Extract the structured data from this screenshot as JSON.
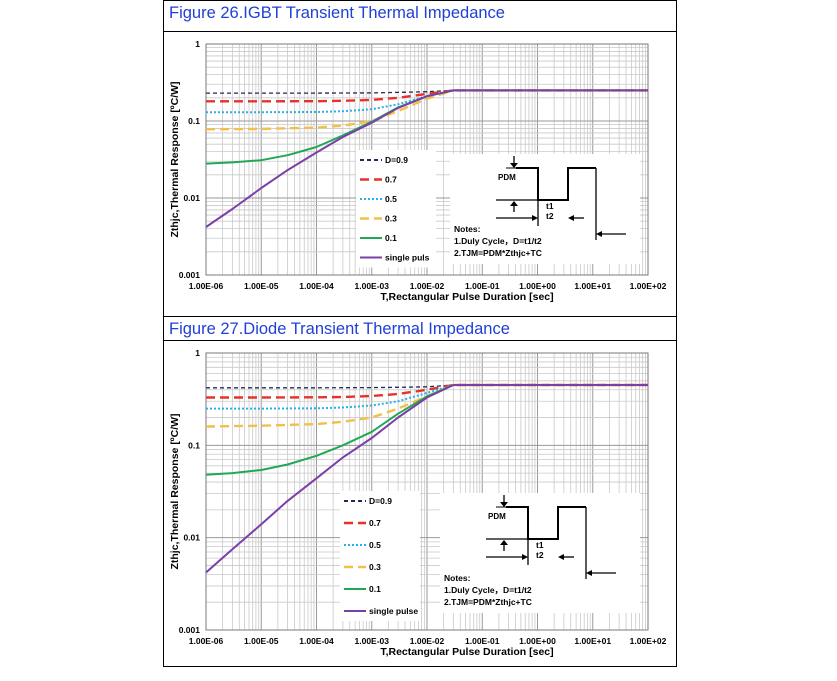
{
  "chart_data": [
    {
      "type": "line",
      "title": "Figure 26.IGBT Transient Thermal Impedance",
      "xlabel": "T,Rectangular Pulse Duration [sec]",
      "ylabel": "Zthjc,Thermal Response [ºC/W]",
      "x_scale": "log",
      "y_scale": "log",
      "xlim": [
        1e-06,
        100
      ],
      "ylim": [
        0.001,
        1
      ],
      "grid": true,
      "x_ticks": [
        "1.00E-06",
        "1.00E-05",
        "1.00E-04",
        "1.00E-03",
        "1.00E-02",
        "1.00E-01",
        "1.00E+00",
        "1.00E+01",
        "1.00E+02"
      ],
      "y_ticks": [
        "0.001",
        "0.01",
        "0.1",
        "1"
      ],
      "legend_position": "bottom-center",
      "series": [
        {
          "name": "D=0.9",
          "color": "#1f2a5a",
          "dash": "dashed-short",
          "x": [
            1e-06,
            1e-05,
            0.0001,
            0.001,
            0.003,
            0.01,
            0.03,
            0.1,
            1,
            10,
            100
          ],
          "y": [
            0.23,
            0.23,
            0.23,
            0.232,
            0.235,
            0.24,
            0.25,
            0.25,
            0.25,
            0.25,
            0.25
          ]
        },
        {
          "name": "0.7",
          "color": "#e8312a",
          "dash": "dashed-long",
          "x": [
            1e-06,
            1e-05,
            0.0001,
            0.0003,
            0.001,
            0.003,
            0.01,
            0.03,
            0.1,
            1,
            10,
            100
          ],
          "y": [
            0.18,
            0.18,
            0.181,
            0.183,
            0.188,
            0.2,
            0.225,
            0.25,
            0.25,
            0.25,
            0.25,
            0.25
          ]
        },
        {
          "name": "0.5",
          "color": "#2ab0e8",
          "dash": "dotted",
          "x": [
            1e-06,
            1e-05,
            0.0001,
            0.0003,
            0.001,
            0.003,
            0.01,
            0.03,
            0.1,
            1,
            10,
            100
          ],
          "y": [
            0.13,
            0.13,
            0.131,
            0.134,
            0.142,
            0.165,
            0.21,
            0.25,
            0.25,
            0.25,
            0.25,
            0.25
          ]
        },
        {
          "name": "0.3",
          "color": "#f2c04a",
          "dash": "dashed-long",
          "x": [
            1e-06,
            1e-05,
            0.0001,
            0.0003,
            0.001,
            0.003,
            0.01,
            0.03,
            0.1,
            1,
            10,
            100
          ],
          "y": [
            0.078,
            0.079,
            0.082,
            0.087,
            0.1,
            0.135,
            0.195,
            0.25,
            0.25,
            0.25,
            0.25,
            0.25
          ]
        },
        {
          "name": "0.1",
          "color": "#22a855",
          "dash": "solid",
          "x": [
            1e-06,
            3e-06,
            1e-05,
            3e-05,
            0.0001,
            0.0003,
            0.001,
            0.003,
            0.01,
            0.03,
            0.1,
            1,
            10,
            100
          ],
          "y": [
            0.028,
            0.029,
            0.031,
            0.036,
            0.046,
            0.065,
            0.098,
            0.15,
            0.21,
            0.25,
            0.25,
            0.25,
            0.25,
            0.25
          ]
        },
        {
          "name": "single puls",
          "color": "#7b3fa8",
          "dash": "solid",
          "x": [
            1e-06,
            3e-06,
            1e-05,
            3e-05,
            0.0001,
            0.0003,
            0.001,
            0.003,
            0.01,
            0.03,
            0.1,
            1,
            10,
            100
          ],
          "y": [
            0.0042,
            0.0072,
            0.0135,
            0.023,
            0.039,
            0.062,
            0.095,
            0.148,
            0.21,
            0.25,
            0.25,
            0.25,
            0.25,
            0.25
          ]
        }
      ],
      "notes": {
        "pdm": "PDM",
        "t1": "t1",
        "t2": "t2",
        "heading": "Notes:",
        "line1": "1.Duly Cycle，D=t1/t2",
        "line2": "2.TJM=PDM*Zthjc+TC"
      }
    },
    {
      "type": "line",
      "title": "Figure 27.Diode Transient Thermal Impedance",
      "xlabel": "T,Rectangular Pulse Duration [sec]",
      "ylabel": "Zthjc,Thermal Response [ºC/W]",
      "x_scale": "log",
      "y_scale": "log",
      "xlim": [
        1e-06,
        100
      ],
      "ylim": [
        0.001,
        1
      ],
      "grid": true,
      "x_ticks": [
        "1.00E-06",
        "1.00E-05",
        "1.00E-04",
        "1.00E-03",
        "1.00E-02",
        "1.00E-01",
        "1.00E+00",
        "1.00E+01",
        "1.00E+02"
      ],
      "y_ticks": [
        "0.001",
        "0.01",
        "0.1",
        "1"
      ],
      "legend_position": "bottom-center",
      "series": [
        {
          "name": "D=0.9",
          "color": "#1f2a5a",
          "dash": "dashed-short",
          "x": [
            1e-06,
            1e-05,
            0.0001,
            0.001,
            0.003,
            0.01,
            0.03,
            0.1,
            1,
            10,
            100
          ],
          "y": [
            0.42,
            0.42,
            0.42,
            0.422,
            0.425,
            0.43,
            0.45,
            0.45,
            0.45,
            0.45,
            0.45
          ]
        },
        {
          "name": "0.7",
          "color": "#e8312a",
          "dash": "dashed-long",
          "x": [
            1e-06,
            1e-05,
            0.0001,
            0.0003,
            0.001,
            0.003,
            0.01,
            0.03,
            0.1,
            1,
            10,
            100
          ],
          "y": [
            0.33,
            0.33,
            0.331,
            0.334,
            0.342,
            0.36,
            0.4,
            0.45,
            0.45,
            0.45,
            0.45,
            0.45
          ]
        },
        {
          "name": "0.5",
          "color": "#2ab0e8",
          "dash": "dotted",
          "x": [
            1e-06,
            1e-05,
            0.0001,
            0.0003,
            0.001,
            0.003,
            0.01,
            0.03,
            0.1,
            1,
            10,
            100
          ],
          "y": [
            0.25,
            0.25,
            0.252,
            0.257,
            0.27,
            0.3,
            0.37,
            0.45,
            0.45,
            0.45,
            0.45,
            0.45
          ]
        },
        {
          "name": "0.3",
          "color": "#f2c04a",
          "dash": "dashed-long",
          "x": [
            1e-06,
            1e-05,
            0.0001,
            0.0003,
            0.001,
            0.003,
            0.01,
            0.03,
            0.1,
            1,
            10,
            100
          ],
          "y": [
            0.16,
            0.163,
            0.17,
            0.18,
            0.2,
            0.25,
            0.34,
            0.45,
            0.45,
            0.45,
            0.45,
            0.45
          ]
        },
        {
          "name": "0.1",
          "color": "#22a855",
          "dash": "solid",
          "x": [
            1e-06,
            3e-06,
            1e-05,
            3e-05,
            0.0001,
            0.0003,
            0.001,
            0.003,
            0.01,
            0.03,
            0.1,
            1,
            10,
            100
          ],
          "y": [
            0.048,
            0.05,
            0.054,
            0.062,
            0.077,
            0.1,
            0.14,
            0.22,
            0.34,
            0.45,
            0.45,
            0.45,
            0.45,
            0.45
          ]
        },
        {
          "name": "single pulse",
          "color": "#7b3fa8",
          "dash": "solid",
          "x": [
            1e-06,
            3e-06,
            1e-05,
            3e-05,
            0.0001,
            0.0003,
            0.001,
            0.003,
            0.01,
            0.03,
            0.1,
            1,
            10,
            100
          ],
          "y": [
            0.0042,
            0.0075,
            0.014,
            0.025,
            0.044,
            0.074,
            0.12,
            0.2,
            0.33,
            0.45,
            0.45,
            0.45,
            0.45,
            0.45
          ]
        }
      ],
      "notes": {
        "pdm": "PDM",
        "t1": "t1",
        "t2": "t2",
        "heading": "Notes:",
        "line1": "1.Duly Cycle，D=t1/t2",
        "line2": "2.TJM=PDM*Zthjc+TC"
      }
    }
  ]
}
